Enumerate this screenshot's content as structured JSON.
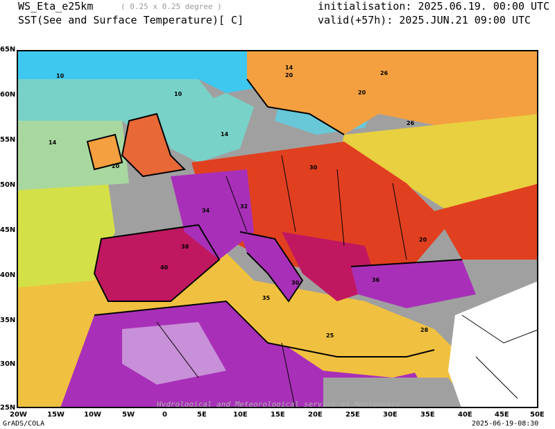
{
  "header": {
    "model": "WS_Eta_e25km",
    "resolution": "( 0.25 x 0.25 degree )",
    "field": "SST(See and Surface Temperature)[ C]",
    "init": "initialisation: 2025.06.19. 00:00 UTC",
    "valid": "valid(+57h): 2025.JUN.21 09:00 UTC"
  },
  "axes": {
    "lat_labels": [
      "65N",
      "60N",
      "55N",
      "50N",
      "45N",
      "40N",
      "35N",
      "30N",
      "25N"
    ],
    "lon_labels": [
      "20W",
      "15W",
      "10W",
      "5W",
      "0",
      "5E",
      "10E",
      "15E",
      "20E",
      "25E",
      "30E",
      "35E",
      "40E",
      "45E",
      "50E"
    ]
  },
  "contour_labels": [
    "10",
    "10",
    "14",
    "14",
    "20",
    "20",
    "26",
    "20",
    "14",
    "26",
    "30",
    "32",
    "34",
    "38",
    "40",
    "36",
    "30",
    "28",
    "20",
    "25",
    "35"
  ],
  "watermark": "Hydrological and Meteorological service of Montenegro",
  "footer": {
    "left": "GrADS/COLA",
    "right": "2025-06-19-08:30"
  },
  "colors": {
    "sea_cold": "#3ec8f0",
    "sea_cool": "#78d2c8",
    "sea_mid": "#a8d8a0",
    "sea_warm": "#d4e048",
    "sea_hot": "#f0c040",
    "land_warm": "#f4a040",
    "land_hot": "#e04020",
    "land_vhot": "#c01860",
    "land_extreme": "#a830b8",
    "land_peak": "#c890d8",
    "nodata": "#a0a0a0"
  }
}
